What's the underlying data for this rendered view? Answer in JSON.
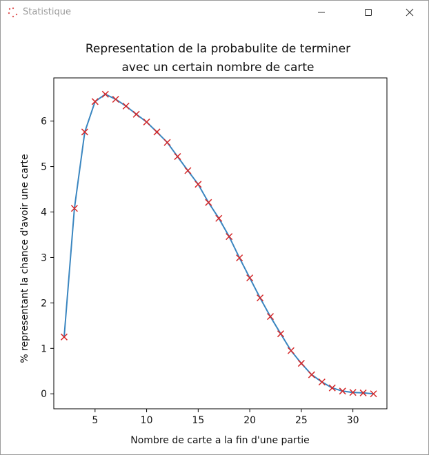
{
  "window": {
    "title": "Statistique"
  },
  "chart_data": {
    "type": "line",
    "title_line1": "Representation de la probabulite de terminer",
    "title_line2": "avec un certain nombre de carte",
    "xlabel": "Nombre de carte a la fin d'une partie",
    "ylabel": "% representant la chance d'avoir une carte",
    "xlim": [
      1,
      33.3
    ],
    "ylim": [
      -0.33,
      6.95
    ],
    "xticks": [
      5,
      10,
      15,
      20,
      25,
      30
    ],
    "yticks": [
      0,
      1,
      2,
      3,
      4,
      5,
      6
    ],
    "line_color": "#3a86c0",
    "marker_color": "#d62728",
    "marker": "x",
    "x": [
      2,
      3,
      4,
      5,
      6,
      7,
      8,
      9,
      10,
      11,
      12,
      13,
      14,
      15,
      16,
      17,
      18,
      19,
      20,
      21,
      22,
      23,
      24,
      25,
      26,
      27,
      28,
      29,
      30,
      31,
      32
    ],
    "y": [
      1.25,
      4.08,
      5.76,
      6.43,
      6.59,
      6.48,
      6.33,
      6.15,
      5.98,
      5.76,
      5.53,
      5.22,
      4.91,
      4.61,
      4.21,
      3.86,
      3.46,
      2.99,
      2.55,
      2.11,
      1.7,
      1.32,
      0.95,
      0.67,
      0.42,
      0.26,
      0.13,
      0.06,
      0.03,
      0.02,
      0.0
    ]
  }
}
